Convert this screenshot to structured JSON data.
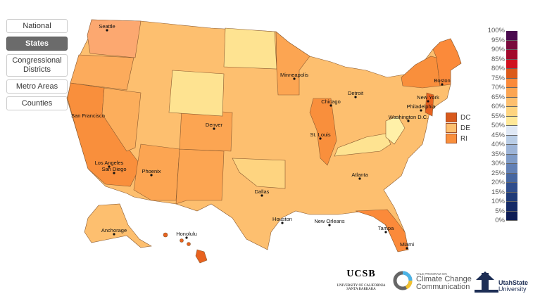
{
  "nav": {
    "items": [
      {
        "label": "National",
        "active": false
      },
      {
        "label": "States",
        "active": true
      },
      {
        "label": "Congressional Districts",
        "active": false
      },
      {
        "label": "Metro Areas",
        "active": false
      },
      {
        "label": "Counties",
        "active": false
      }
    ]
  },
  "map": {
    "cities": [
      "Seattle",
      "Minneapolis",
      "Boston",
      "Detroit",
      "New York",
      "Chicago",
      "Philadelphia",
      "San Francisco",
      "Denver",
      "Washington D.C.",
      "St. Louis",
      "Los Angeles",
      "San Diego",
      "Phoenix",
      "Dallas",
      "Atlanta",
      "Houston",
      "New Orleans",
      "Anchorage",
      "Honolulu",
      "Tampa",
      "Miami"
    ],
    "small_states": [
      {
        "label": "DC",
        "color": "#d95a1c"
      },
      {
        "label": "DE",
        "color": "#fdbf6f"
      },
      {
        "label": "RI",
        "color": "#f98f3c"
      }
    ]
  },
  "legend": {
    "labels": [
      "100%",
      "95%",
      "90%",
      "85%",
      "80%",
      "75%",
      "70%",
      "65%",
      "60%",
      "55%",
      "50%",
      "45%",
      "40%",
      "35%",
      "30%",
      "25%",
      "20%",
      "15%",
      "10%",
      "5%",
      "0%"
    ],
    "colors": [
      "#4a0a4e",
      "#7a0a3c",
      "#a20a2c",
      "#d0121f",
      "#db5a1a",
      "#fb8a3a",
      "#fca552",
      "#fdbf6f",
      "#fed480",
      "#ffe898",
      "#dfe8f5",
      "#b9cde6",
      "#9db4d7",
      "#7f9bc7",
      "#6280b5",
      "#4666a0",
      "#2f4d8c",
      "#1f3a77",
      "#152a66",
      "#0d1c55"
    ]
  },
  "logos": {
    "ucsb": "UCSB",
    "ucsb_sub1": "UNIVERSITY OF CALIFORNIA",
    "ucsb_sub2": "SANTA BARBARA",
    "yale_small": "YALE PROGRAM ON",
    "yale_1": "Climate Change",
    "yale_2": "Communication",
    "usu_1": "UtahState",
    "usu_2": "University"
  }
}
